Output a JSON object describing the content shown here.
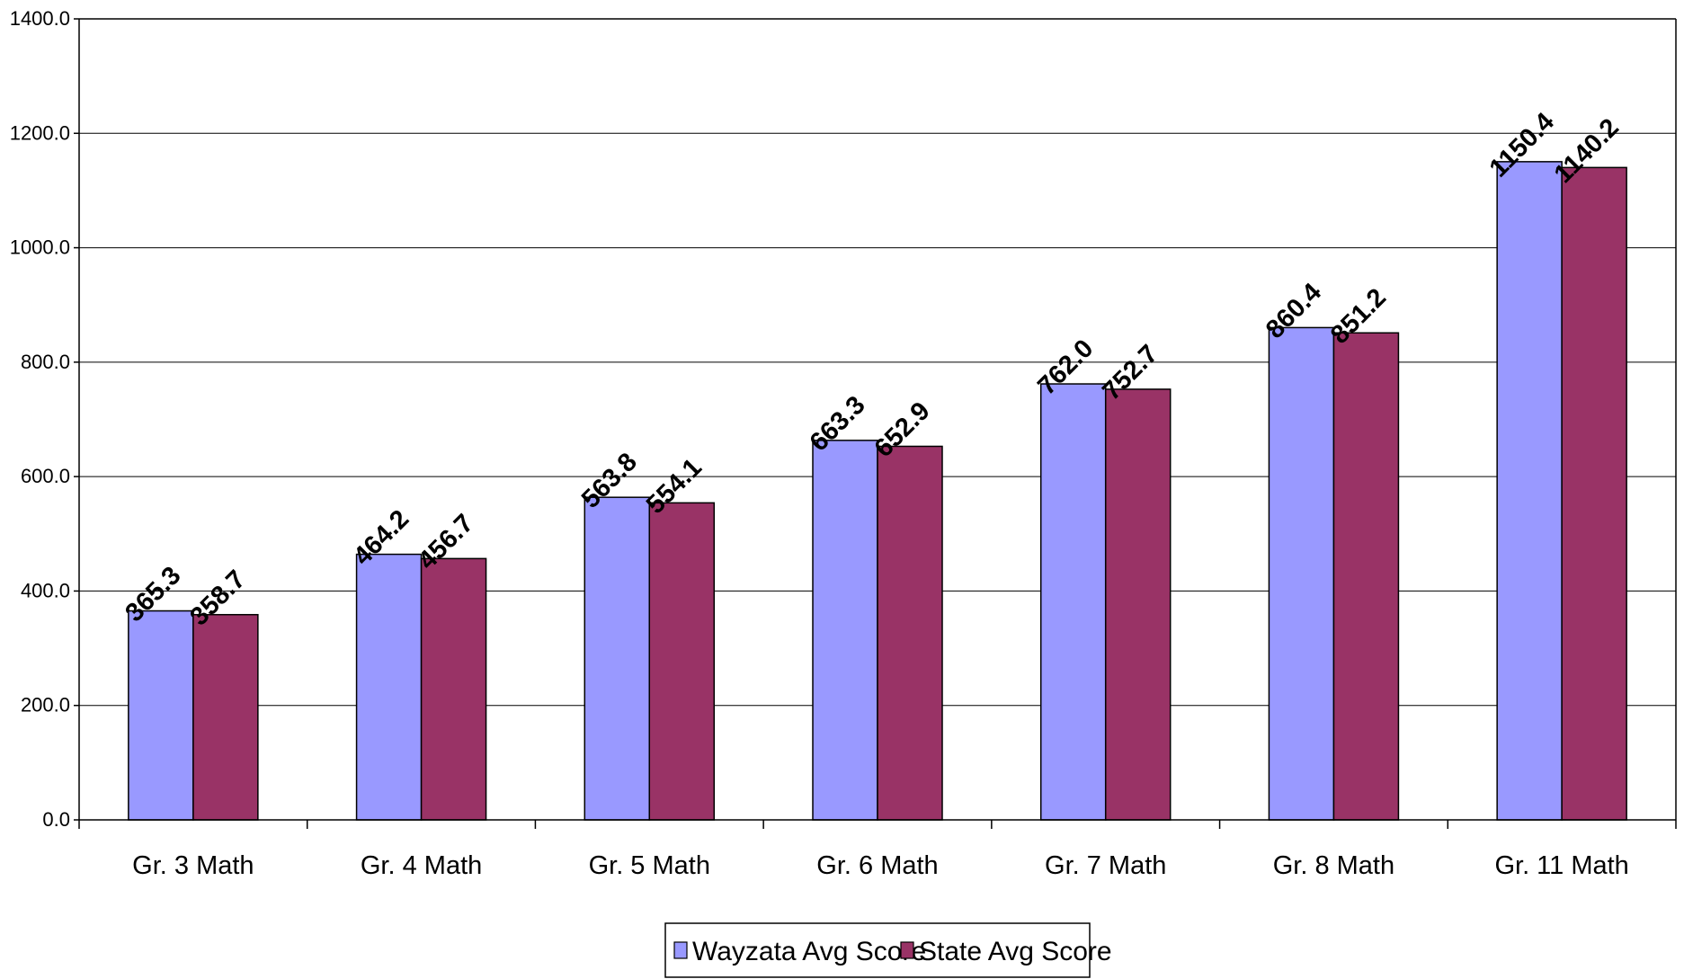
{
  "chart_data": {
    "type": "bar",
    "title": "",
    "xlabel": "",
    "ylabel": "",
    "categories": [
      "Gr. 3 Math",
      "Gr. 4 Math",
      "Gr. 5 Math",
      "Gr. 6 Math",
      "Gr. 7 Math",
      "Gr. 8 Math",
      "Gr. 11 Math"
    ],
    "series": [
      {
        "name": "Wayzata Avg Score",
        "color": "#9999FF",
        "values": [
          365.3,
          464.2,
          563.8,
          663.3,
          762.0,
          860.4,
          1150.4
        ]
      },
      {
        "name": "State Avg Score",
        "color": "#993366",
        "values": [
          358.7,
          456.7,
          554.1,
          652.9,
          752.7,
          851.2,
          1140.2
        ]
      }
    ],
    "ylim": [
      0,
      1400
    ],
    "yticks": [
      0,
      200,
      400,
      600,
      800,
      1000,
      1200,
      1400
    ],
    "ytick_decimals": 1,
    "grid": true,
    "legend_position": "bottom-center",
    "data_labels": true
  }
}
